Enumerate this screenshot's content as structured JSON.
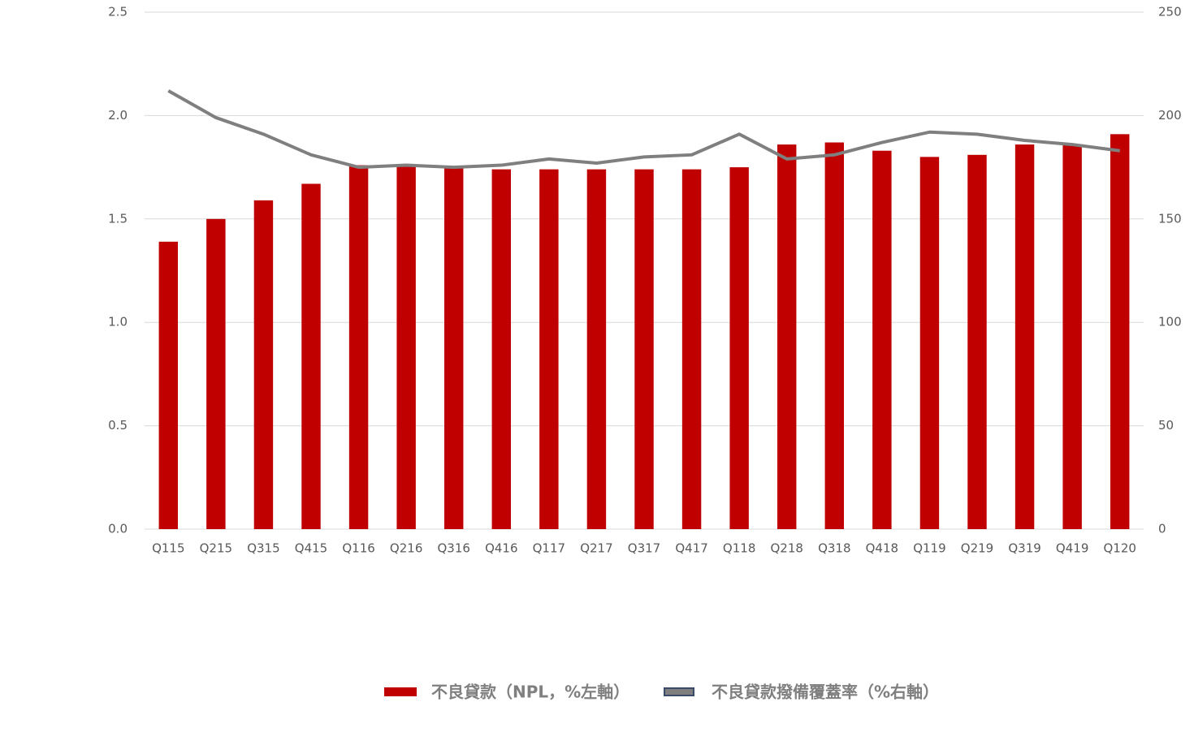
{
  "chart_data": {
    "type": "bar_line",
    "categories": [
      "Q115",
      "Q215",
      "Q315",
      "Q415",
      "Q116",
      "Q216",
      "Q316",
      "Q416",
      "Q117",
      "Q217",
      "Q317",
      "Q417",
      "Q118",
      "Q218",
      "Q318",
      "Q418",
      "Q119",
      "Q219",
      "Q319",
      "Q419",
      "Q120"
    ],
    "series": [
      {
        "name": "不良貸款（NPL，%左軸）",
        "type": "bar",
        "color": "#c00000",
        "values": [
          1.39,
          1.5,
          1.59,
          1.67,
          1.76,
          1.76,
          1.75,
          1.74,
          1.74,
          1.74,
          1.74,
          1.74,
          1.75,
          1.86,
          1.87,
          1.83,
          1.8,
          1.81,
          1.86,
          1.86,
          1.91
        ]
      },
      {
        "name": "不良貸款撥備覆蓋率（%右軸）",
        "type": "line",
        "color": "#7f7f7f",
        "axis": "y2",
        "values": [
          212,
          199,
          191,
          181,
          175,
          176,
          175,
          176,
          179,
          177,
          180,
          181,
          191,
          179,
          181,
          187,
          192,
          191,
          188,
          186,
          183
        ]
      }
    ],
    "ylim": [
      0,
      2.5
    ],
    "yticks": [
      {
        "value": 0,
        "label": "0.0"
      },
      {
        "value": 0.5,
        "label": "0.5"
      },
      {
        "value": 1,
        "label": "1.0"
      },
      {
        "value": 1.5,
        "label": "1.5"
      },
      {
        "value": 2,
        "label": "2.0"
      },
      {
        "value": 2.5,
        "label": "2.5"
      }
    ],
    "y2lim": [
      0,
      250
    ],
    "y2ticks": [
      0,
      50,
      100,
      150,
      200,
      250
    ],
    "grid": true,
    "legend": "bottom"
  }
}
